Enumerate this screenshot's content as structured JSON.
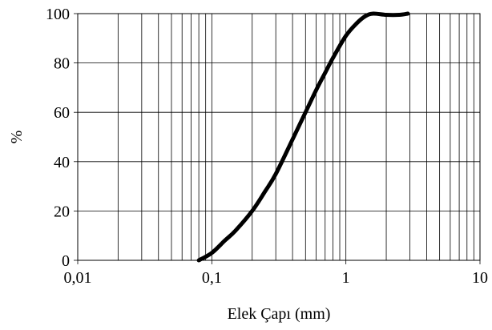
{
  "chart_data": {
    "type": "line",
    "title": "",
    "xlabel": "Elek Çapı  (mm)",
    "ylabel": "%",
    "xscale": "log",
    "xlim": [
      0.01,
      10
    ],
    "ylim": [
      0,
      100
    ],
    "x_tick_labels": [
      "0,01",
      "0,1",
      "1",
      "10"
    ],
    "y_tick_labels": [
      "0",
      "20",
      "40",
      "60",
      "80",
      "100"
    ],
    "grid": true,
    "legend": "none",
    "series": [
      {
        "color": "#000000",
        "x": [
          0.08,
          0.1,
          0.125,
          0.15,
          0.2,
          0.25,
          0.3,
          0.4,
          0.5,
          0.6,
          0.7,
          0.8,
          1.0,
          1.2,
          1.4,
          1.6,
          2.0,
          2.5,
          2.9
        ],
        "y": [
          0,
          3,
          8,
          12,
          20,
          28,
          35,
          49,
          60,
          69,
          76,
          82,
          91,
          96,
          99,
          100,
          99.5,
          99.5,
          100
        ]
      }
    ]
  }
}
